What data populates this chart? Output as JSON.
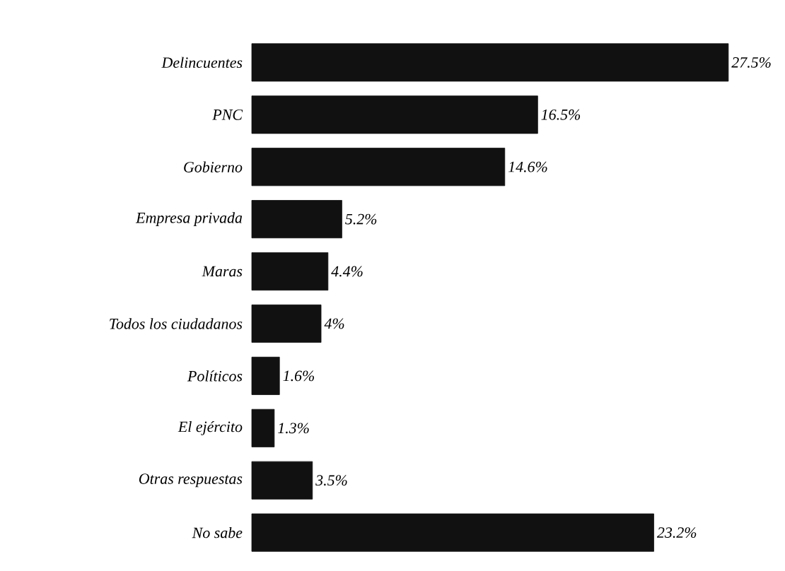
{
  "chart_data": {
    "type": "bar",
    "orientation": "horizontal",
    "categories": [
      "Delincuentes",
      "PNC",
      "Gobierno",
      "Empresa privada",
      "Maras",
      "Todos los ciudadanos",
      "Políticos",
      "El ejército",
      "Otras respuestas",
      "No sabe"
    ],
    "values": [
      27.5,
      16.5,
      14.6,
      5.2,
      4.4,
      4,
      1.6,
      1.3,
      3.5,
      23.2
    ],
    "value_labels": [
      "27.5%",
      "16.5%",
      "14.6%",
      "5.2%",
      "4.4%",
      "4%",
      "1.6%",
      "1.3%",
      "3.5%",
      "23.2%"
    ],
    "color": "#111111"
  }
}
